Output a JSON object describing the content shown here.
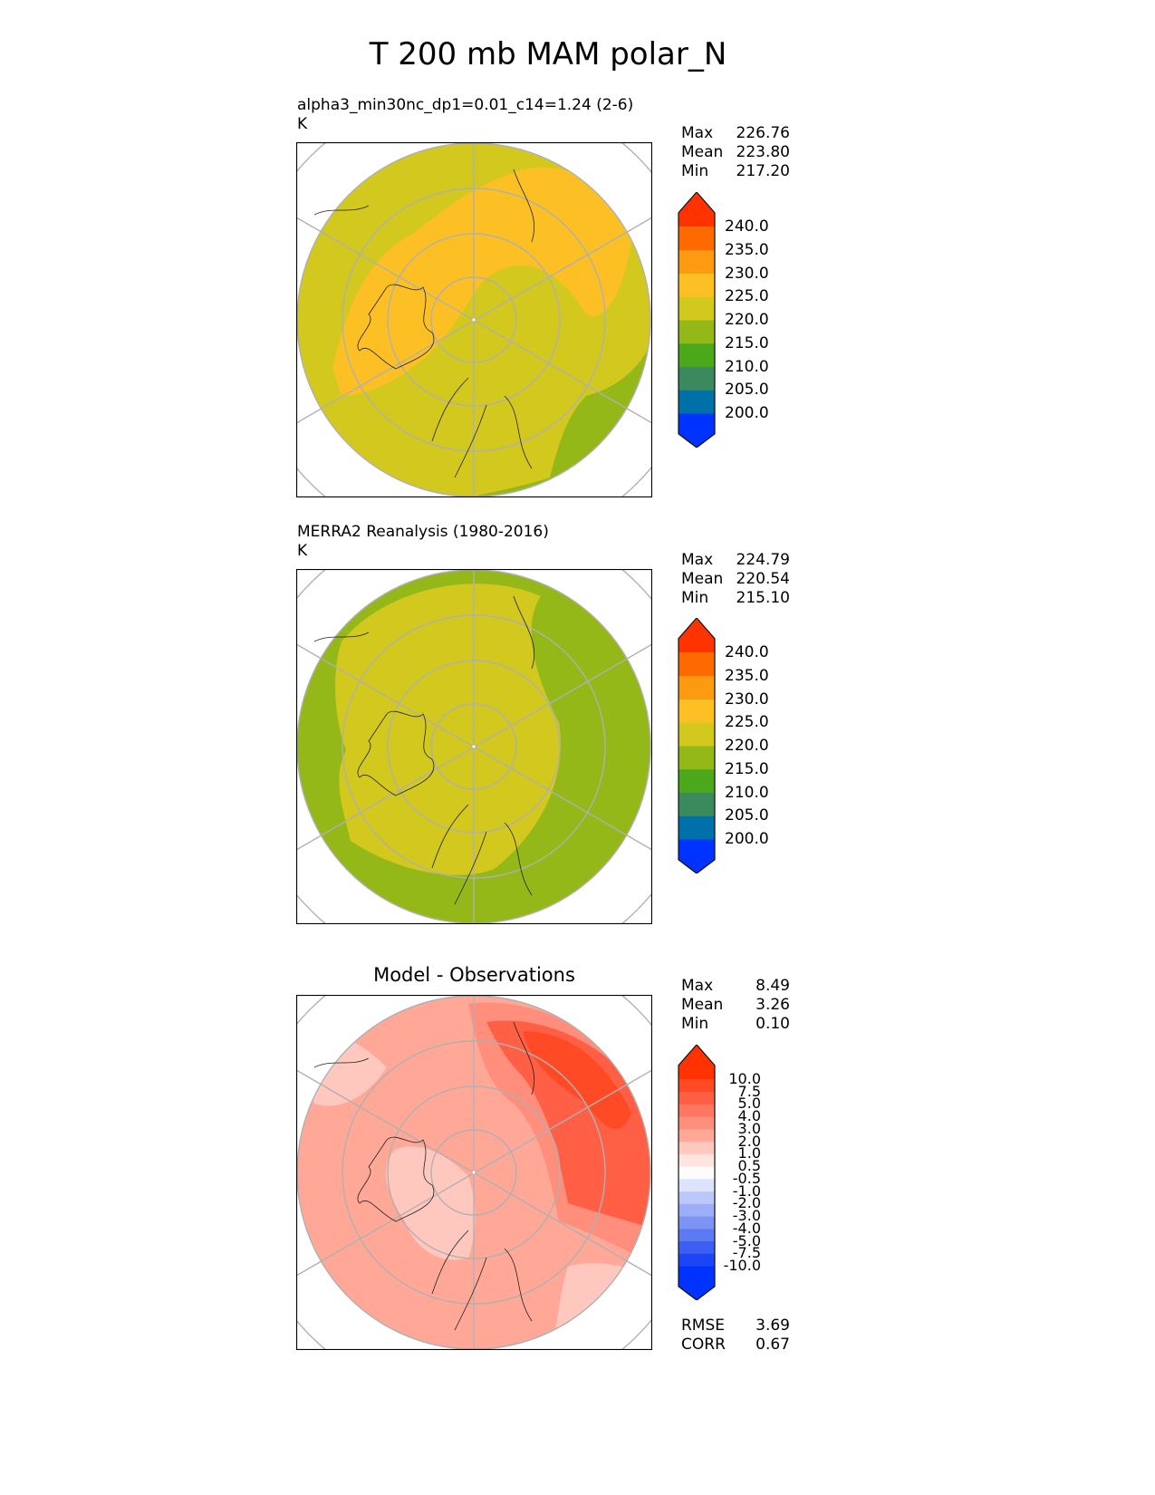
{
  "title": "T 200 mb MAM polar_N",
  "panels": [
    {
      "title": "alpha3_min30nc_dp1=0.01_c14=1.24 (2-6)",
      "units": "K",
      "stats": [
        {
          "label": "Max",
          "value": "226.76"
        },
        {
          "label": "Mean",
          "value": "223.80"
        },
        {
          "label": "Min",
          "value": "217.20"
        }
      ]
    },
    {
      "title": "MERRA2 Reanalysis (1980-2016)",
      "units": "K",
      "stats": [
        {
          "label": "Max",
          "value": "224.79"
        },
        {
          "label": "Mean",
          "value": "220.54"
        },
        {
          "label": "Min",
          "value": "215.10"
        }
      ]
    },
    {
      "title": "Model - Observations",
      "stats": [
        {
          "label": "Max",
          "value": "8.49"
        },
        {
          "label": "Mean",
          "value": "3.26"
        },
        {
          "label": "Min",
          "value": "0.10"
        }
      ],
      "metrics": [
        {
          "label": "RMSE",
          "value": "3.69"
        },
        {
          "label": "CORR",
          "value": "0.67"
        }
      ]
    }
  ],
  "colorbar_abs": {
    "levels": [
      "200.0",
      "205.0",
      "210.0",
      "215.0",
      "220.0",
      "225.0",
      "230.0",
      "235.0",
      "240.0"
    ],
    "colors": [
      "#0033ff",
      "#0070a8",
      "#3a8a5e",
      "#4aa81a",
      "#94b818",
      "#d2c81e",
      "#fcc024",
      "#fc9a12",
      "#ff6a00",
      "#ff3300"
    ]
  },
  "colorbar_diff": {
    "levels": [
      "-10.0",
      "-7.5",
      "-5.0",
      "-4.0",
      "-3.0",
      "-2.0",
      "-1.0",
      "-0.5",
      "0.5",
      "1.0",
      "2.0",
      "3.0",
      "4.0",
      "5.0",
      "7.5",
      "10.0"
    ],
    "colors": [
      "#0033ff",
      "#1d44f5",
      "#3d5ef0",
      "#5d7af2",
      "#7d94f5",
      "#9daef8",
      "#bdc8fa",
      "#dde3fc",
      "#fcfcfc",
      "#ffe4e0",
      "#ffc8bf",
      "#ffa898",
      "#ff8f7c",
      "#ff7760",
      "#ff5f44",
      "#ff4a26",
      "#ff3300"
    ]
  },
  "chart_data": {
    "type": "map",
    "projection": "north-polar stereographic",
    "variable": "T 200 mb MAM",
    "units": "K"
  }
}
